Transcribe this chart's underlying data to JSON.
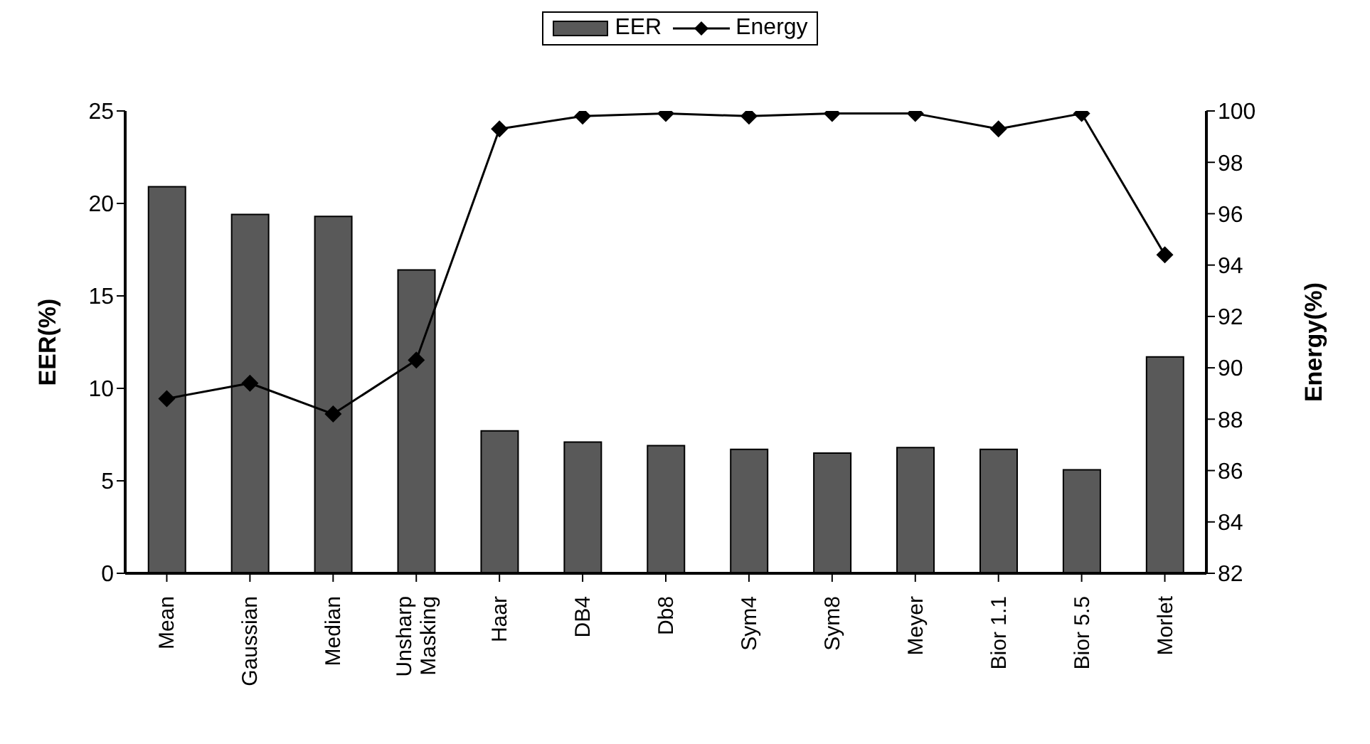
{
  "chart_data": {
    "type": "bar",
    "categories": [
      "Mean",
      "Gaussian",
      "Median",
      "Unsharp Masking",
      "Haar",
      "DB4",
      "Db8",
      "Sym4",
      "Sym8",
      "Meyer",
      "Bior 1.1",
      "Bior 5.5",
      "Morlet"
    ],
    "series": [
      {
        "name": "EER",
        "color": "#595959",
        "values": [
          20.9,
          19.4,
          19.3,
          16.4,
          7.7,
          7.1,
          6.9,
          6.7,
          6.5,
          6.8,
          6.7,
          5.6,
          11.7
        ]
      },
      {
        "name": "Energy",
        "type": "line",
        "axis": "y2",
        "color": "#000000",
        "marker": "diamond",
        "values": [
          88.8,
          89.4,
          88.2,
          90.3,
          99.3,
          99.8,
          99.9,
          99.8,
          99.9,
          99.9,
          99.3,
          99.9,
          94.4
        ]
      }
    ],
    "ylabel": "EER(%)",
    "y2label": "Energy(%)",
    "ylim": [
      0,
      25
    ],
    "yticks": [
      0,
      5,
      10,
      15,
      20,
      25
    ],
    "y2lim": [
      82,
      100
    ],
    "y2ticks": [
      82,
      84,
      86,
      88,
      90,
      92,
      94,
      96,
      98,
      100
    ],
    "grid": false,
    "legend": "top"
  }
}
